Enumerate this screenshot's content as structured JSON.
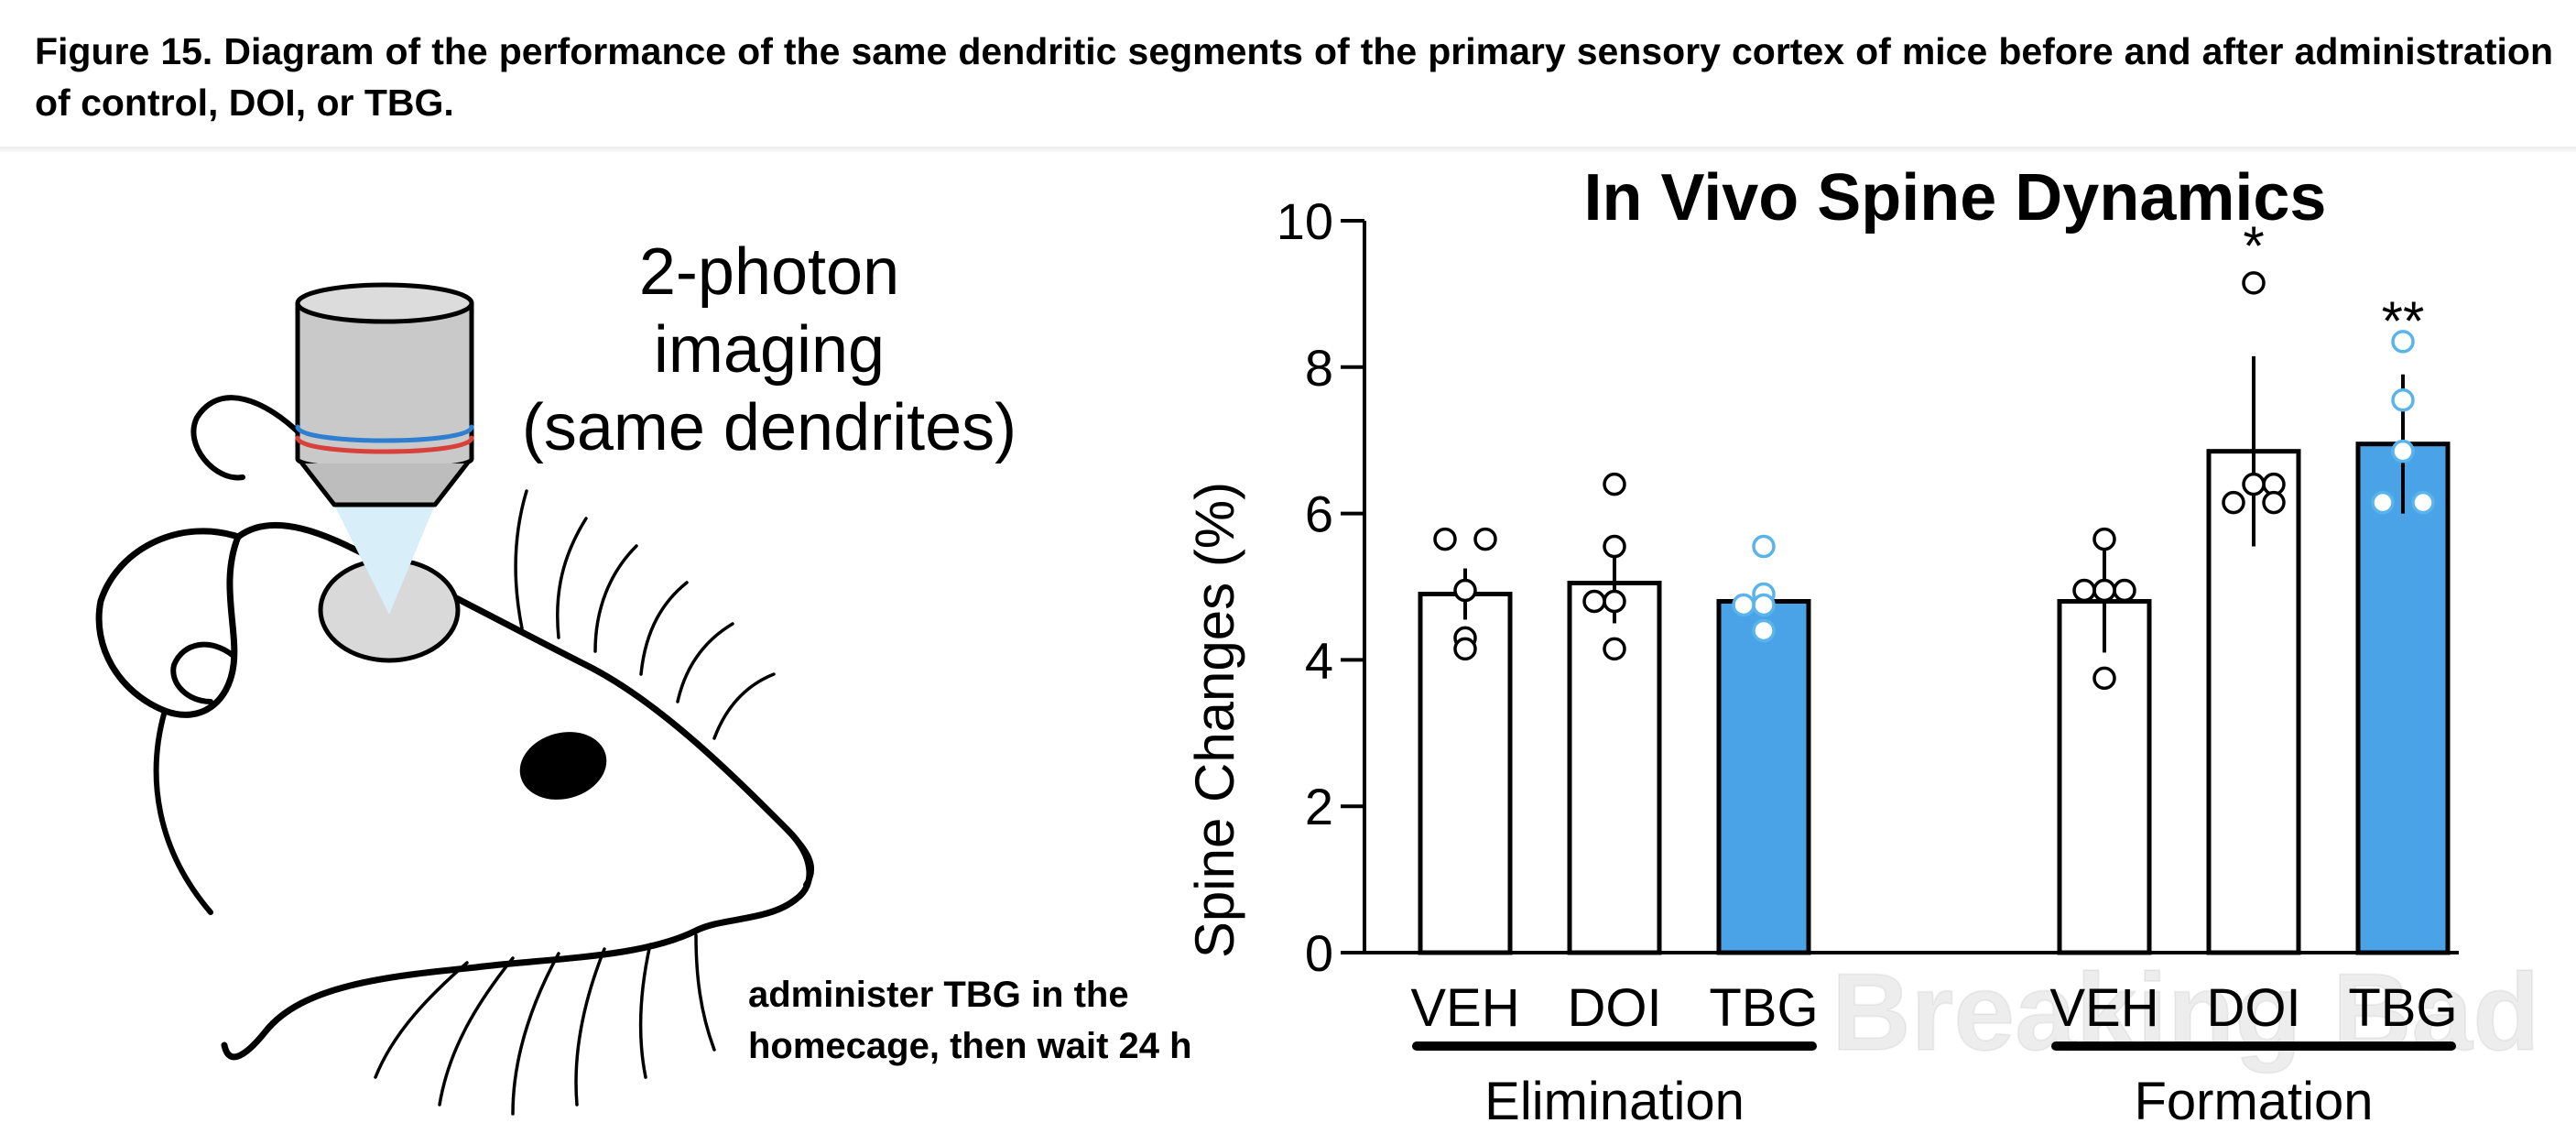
{
  "caption": "Figure 15. Diagram of the performance of the same dendritic segments of the primary sensory cortex of mice before and after administration of control, DOI, or TBG.",
  "illustration": {
    "label_lines": [
      "2-photon",
      "imaging",
      "(same dendrites)"
    ],
    "note_lines": [
      "administer TBG in the",
      "homecage, then wait 24 h"
    ]
  },
  "watermark": "Breaking Bad",
  "colors": {
    "blue": "#4aa3e6",
    "blue_dots": "#5ab4ec",
    "black": "#000000",
    "microscope_blue": "#2f7fd1",
    "microscope_red": "#d9403a",
    "light_beam": "#d8eef8"
  },
  "chart_data": {
    "type": "bar",
    "title": "In Vivo Spine Dynamics",
    "ylabel": "Spine Changes (%)",
    "ylim": [
      0,
      10
    ],
    "yticks": [
      0,
      2,
      4,
      6,
      8,
      10
    ],
    "groups": [
      {
        "name": "Elimination",
        "bars": [
          {
            "label": "VEH",
            "value": 4.9,
            "err": 0.35,
            "fill": "white",
            "points": [
              5.65,
              5.65,
              4.95,
              4.3,
              4.15
            ],
            "stars": ""
          },
          {
            "label": "DOI",
            "value": 5.05,
            "err": 0.55,
            "fill": "white",
            "points": [
              6.4,
              5.55,
              4.8,
              4.8,
              4.15
            ],
            "stars": ""
          },
          {
            "label": "TBG",
            "value": 4.8,
            "err": 0.2,
            "fill": "blue",
            "points": [
              5.55,
              4.9,
              4.75,
              4.75,
              4.4
            ],
            "stars": ""
          }
        ]
      },
      {
        "name": "Formation",
        "bars": [
          {
            "label": "VEH",
            "value": 4.8,
            "err": 0.7,
            "fill": "white",
            "points": [
              5.65,
              4.95,
              4.95,
              4.95,
              3.75
            ],
            "stars": ""
          },
          {
            "label": "DOI",
            "value": 6.85,
            "err": 1.3,
            "fill": "white",
            "points": [
              9.15,
              6.4,
              6.4,
              6.15,
              6.15
            ],
            "stars": "*"
          },
          {
            "label": "TBG",
            "value": 6.95,
            "err": 0.95,
            "fill": "blue",
            "points": [
              8.35,
              7.55,
              6.85,
              6.15,
              6.15
            ],
            "stars": "**"
          }
        ]
      }
    ]
  }
}
